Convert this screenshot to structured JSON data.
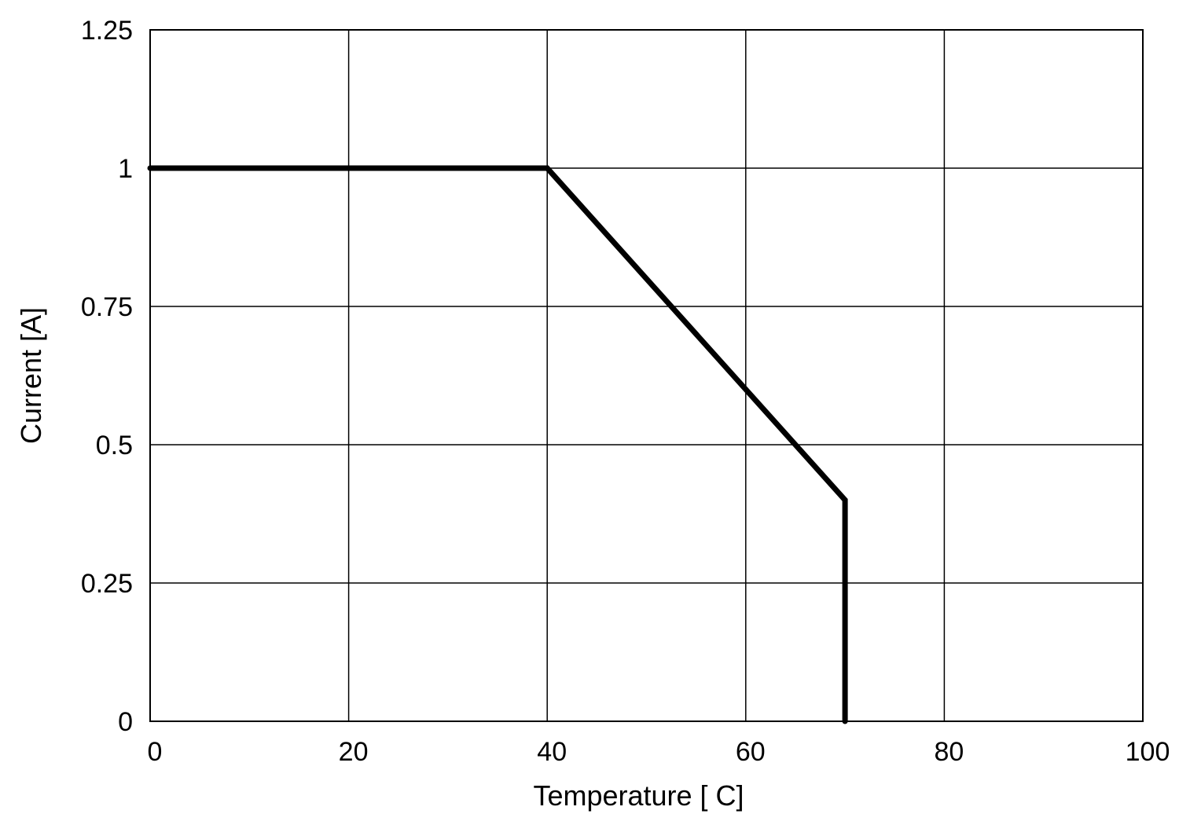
{
  "chart_data": {
    "type": "line",
    "title": "",
    "xlabel": "Temperature [ C]",
    "ylabel": "Current [A]",
    "xlim": [
      0,
      100
    ],
    "ylim": [
      0,
      1.25
    ],
    "x_ticks": [
      0,
      20,
      40,
      60,
      80,
      100
    ],
    "x_tick_labels": [
      "0",
      "20",
      "40",
      "60",
      "80",
      "100"
    ],
    "y_ticks": [
      0,
      0.25,
      0.5,
      0.75,
      1,
      1.25
    ],
    "y_tick_labels": [
      "0",
      "0.25",
      "0.5",
      "0.75",
      "1",
      "1.25"
    ],
    "grid": true,
    "legend": "none",
    "series": [
      {
        "color": "#000000",
        "x": [
          0,
          40,
          70,
          70
        ],
        "y": [
          1.0,
          1.0,
          0.4,
          0.0
        ]
      }
    ]
  }
}
